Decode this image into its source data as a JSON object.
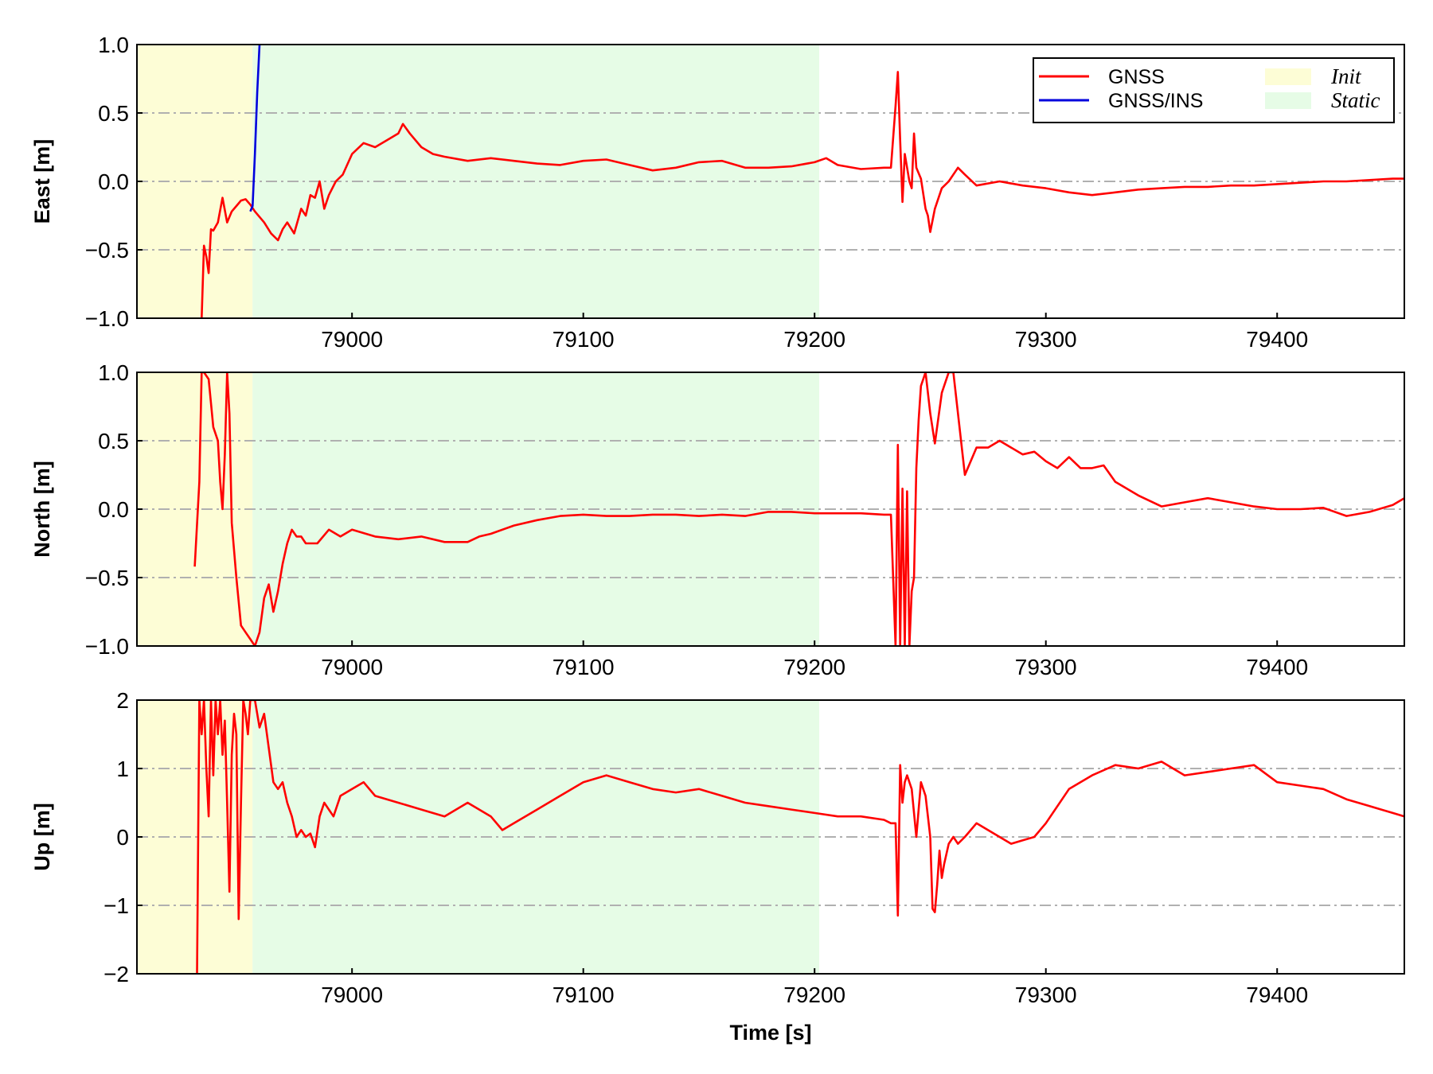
{
  "chart_data": {
    "type": "line",
    "xlabel": "Time [s]",
    "xlim": [
      78907,
      79455
    ],
    "x_ticks": [
      "79000",
      "79100",
      "79200",
      "79300",
      "79400"
    ],
    "x_tick_values": [
      79000,
      79100,
      79200,
      79300,
      79400
    ],
    "grid": "horizontal dash-dot at major y ticks",
    "legend": {
      "placement": "top-right of first panel",
      "entries": [
        {
          "label": "GNSS",
          "kind": "line",
          "color": "#ff0000"
        },
        {
          "label": "GNSS/INS",
          "kind": "line",
          "color": "#0000dd"
        },
        {
          "label": "Init",
          "kind": "patch",
          "color": "#fdfdd6"
        },
        {
          "label": "Static",
          "kind": "patch",
          "color": "#e6fce6"
        }
      ]
    },
    "shaded_regions": [
      {
        "label": "Init",
        "x": [
          78907,
          78957
        ],
        "color": "#fdfdd6"
      },
      {
        "label": "Static",
        "x": [
          78957,
          79202
        ],
        "color": "#e6fce6"
      }
    ],
    "panels": [
      {
        "ylabel": "East [m]",
        "ylim": [
          -1.0,
          1.0
        ],
        "y_ticks": [
          "−1.0",
          "−0.5",
          "0.0",
          "0.5",
          "1.0"
        ],
        "y_tick_values": [
          -1.0,
          -0.5,
          0.0,
          0.5,
          1.0
        ],
        "series": [
          {
            "name": "GNSS",
            "color": "#ff0000",
            "x": [
              78935,
              78936,
              78937,
              78938,
              78939,
              78940,
              78942,
              78944,
              78946,
              78948,
              78950,
              78952,
              78954,
              78956,
              78958,
              78960,
              78962,
              78965,
              78968,
              78970,
              78972,
              78975,
              78978,
              78980,
              78982,
              78984,
              78986,
              78988,
              78990,
              78993,
              78996,
              79000,
              79005,
              79010,
              79015,
              79020,
              79022,
              79025,
              79030,
              79035,
              79040,
              79050,
              79060,
              79070,
              79080,
              79090,
              79100,
              79110,
              79120,
              79130,
              79140,
              79150,
              79160,
              79170,
              79180,
              79190,
              79200,
              79205,
              79210,
              79220,
              79230,
              79233,
              79235,
              79236,
              79237,
              79238,
              79239,
              79240,
              79241,
              79242,
              79243,
              79244,
              79246,
              79248,
              79249,
              79250,
              79252,
              79255,
              79258,
              79262,
              79265,
              79270,
              79280,
              79290,
              79300,
              79310,
              79320,
              79330,
              79340,
              79350,
              79360,
              79370,
              79380,
              79390,
              79400,
              79410,
              79420,
              79430,
              79440,
              79450,
              79455
            ],
            "y": [
              -1.0,
              -0.47,
              -0.55,
              -0.67,
              -0.35,
              -0.36,
              -0.3,
              -0.12,
              -0.3,
              -0.22,
              -0.18,
              -0.14,
              -0.13,
              -0.17,
              -0.22,
              -0.26,
              -0.3,
              -0.38,
              -0.43,
              -0.35,
              -0.3,
              -0.38,
              -0.2,
              -0.25,
              -0.1,
              -0.12,
              0.0,
              -0.2,
              -0.1,
              0.0,
              0.05,
              0.2,
              0.28,
              0.25,
              0.3,
              0.35,
              0.42,
              0.35,
              0.25,
              0.2,
              0.18,
              0.15,
              0.17,
              0.15,
              0.13,
              0.12,
              0.15,
              0.16,
              0.12,
              0.08,
              0.1,
              0.14,
              0.15,
              0.1,
              0.1,
              0.11,
              0.14,
              0.17,
              0.12,
              0.09,
              0.1,
              0.1,
              0.55,
              0.8,
              0.3,
              -0.15,
              0.2,
              0.1,
              0.0,
              -0.05,
              0.35,
              0.1,
              0.02,
              -0.2,
              -0.25,
              -0.37,
              -0.2,
              -0.05,
              0.0,
              0.1,
              0.05,
              -0.03,
              0.0,
              -0.03,
              -0.05,
              -0.08,
              -0.1,
              -0.08,
              -0.06,
              -0.05,
              -0.04,
              -0.04,
              -0.03,
              -0.03,
              -0.02,
              -0.01,
              0.0,
              0.0,
              0.01,
              0.02,
              0.02
            ]
          },
          {
            "name": "GNSS/INS",
            "color": "#0000dd",
            "x": [
              78956,
              78957,
              78958,
              78959,
              78960
            ],
            "y": [
              -0.22,
              -0.18,
              0.2,
              0.65,
              1.0
            ]
          }
        ]
      },
      {
        "ylabel": "North [m]",
        "ylim": [
          -1.0,
          1.0
        ],
        "y_ticks": [
          "−1.0",
          "−0.5",
          "0.0",
          "0.5",
          "1.0"
        ],
        "y_tick_values": [
          -1.0,
          -0.5,
          0.0,
          0.5,
          1.0
        ],
        "series": [
          {
            "name": "GNSS",
            "color": "#ff0000",
            "x": [
              78932,
              78934,
              78935,
              78936,
              78938,
              78940,
              78942,
              78943,
              78944,
              78945,
              78946,
              78947,
              78948,
              78950,
              78952,
              78954,
              78956,
              78958,
              78960,
              78962,
              78964,
              78966,
              78968,
              78970,
              78972,
              78974,
              78976,
              78978,
              78980,
              78985,
              78990,
              78995,
              79000,
              79010,
              79020,
              79030,
              79040,
              79050,
              79055,
              79060,
              79070,
              79080,
              79090,
              79100,
              79110,
              79120,
              79130,
              79140,
              79150,
              79160,
              79170,
              79180,
              79190,
              79200,
              79210,
              79220,
              79230,
              79233,
              79235,
              79236,
              79237,
              79238,
              79239,
              79240,
              79241,
              79242,
              79243,
              79244,
              79245,
              79246,
              79248,
              79250,
              79252,
              79255,
              79258,
              79260,
              79262,
              79265,
              79270,
              79275,
              79280,
              79285,
              79290,
              79295,
              79300,
              79305,
              79310,
              79315,
              79320,
              79325,
              79330,
              79340,
              79350,
              79360,
              79370,
              79380,
              79390,
              79400,
              79410,
              79420,
              79430,
              79440,
              79450,
              79455
            ],
            "y": [
              -0.42,
              0.2,
              1.0,
              1.0,
              0.95,
              0.6,
              0.5,
              0.2,
              0.0,
              0.4,
              1.0,
              0.7,
              -0.1,
              -0.5,
              -0.85,
              -0.9,
              -0.95,
              -1.0,
              -0.9,
              -0.65,
              -0.55,
              -0.75,
              -0.6,
              -0.4,
              -0.25,
              -0.15,
              -0.2,
              -0.2,
              -0.25,
              -0.25,
              -0.15,
              -0.2,
              -0.15,
              -0.2,
              -0.22,
              -0.2,
              -0.24,
              -0.24,
              -0.2,
              -0.18,
              -0.12,
              -0.08,
              -0.05,
              -0.04,
              -0.05,
              -0.05,
              -0.04,
              -0.04,
              -0.05,
              -0.04,
              -0.05,
              -0.02,
              -0.02,
              -0.03,
              -0.03,
              -0.03,
              -0.04,
              -0.04,
              -1.0,
              0.47,
              -1.0,
              0.15,
              -1.0,
              0.13,
              -1.0,
              -0.6,
              -0.5,
              0.3,
              0.65,
              0.9,
              1.0,
              0.7,
              0.48,
              0.85,
              1.0,
              1.0,
              0.7,
              0.25,
              0.45,
              0.45,
              0.5,
              0.45,
              0.4,
              0.42,
              0.35,
              0.3,
              0.38,
              0.3,
              0.3,
              0.32,
              0.2,
              0.1,
              0.02,
              0.05,
              0.08,
              0.05,
              0.02,
              0.0,
              0.0,
              0.01,
              -0.05,
              -0.02,
              0.03,
              0.08
            ]
          }
        ]
      },
      {
        "ylabel": "Up [m]",
        "ylim": [
          -2,
          2
        ],
        "y_ticks": [
          "−2",
          "−1",
          "0",
          "1",
          "2"
        ],
        "y_tick_values": [
          -2,
          -1,
          0,
          1,
          2
        ],
        "series": [
          {
            "name": "GNSS",
            "color": "#ff0000",
            "x": [
              78933,
              78934,
              78935,
              78936,
              78937,
              78938,
              78939,
              78940,
              78941,
              78942,
              78943,
              78944,
              78945,
              78946,
              78947,
              78948,
              78949,
              78950,
              78951,
              78952,
              78953,
              78954,
              78955,
              78956,
              78958,
              78960,
              78962,
              78964,
              78966,
              78968,
              78970,
              78972,
              78974,
              78976,
              78978,
              78980,
              78982,
              78984,
              78986,
              78988,
              78990,
              78992,
              78995,
              79000,
              79005,
              79010,
              79020,
              79030,
              79040,
              79050,
              79060,
              79065,
              79070,
              79080,
              79090,
              79100,
              79110,
              79120,
              79130,
              79140,
              79150,
              79160,
              79170,
              79180,
              79190,
              79200,
              79210,
              79220,
              79230,
              79233,
              79235,
              79236,
              79237,
              79238,
              79239,
              79240,
              79242,
              79244,
              79246,
              79248,
              79250,
              79251,
              79252,
              79253,
              79254,
              79255,
              79256,
              79258,
              79260,
              79262,
              79265,
              79270,
              79275,
              79280,
              79285,
              79290,
              79295,
              79300,
              79310,
              79320,
              79330,
              79340,
              79350,
              79360,
              79370,
              79380,
              79390,
              79400,
              79410,
              79420,
              79430,
              79440,
              79450,
              79455
            ],
            "y": [
              -2.0,
              2.0,
              1.5,
              2.0,
              1.0,
              0.3,
              2.0,
              0.9,
              2.0,
              1.5,
              2.0,
              1.2,
              1.7,
              0.5,
              -0.8,
              1.2,
              1.8,
              1.5,
              -1.2,
              0.5,
              2.0,
              1.8,
              1.5,
              2.0,
              2.0,
              1.6,
              1.8,
              1.3,
              0.8,
              0.7,
              0.8,
              0.5,
              0.3,
              0.0,
              0.1,
              0.0,
              0.05,
              -0.15,
              0.3,
              0.5,
              0.4,
              0.3,
              0.6,
              0.7,
              0.8,
              0.6,
              0.5,
              0.4,
              0.3,
              0.5,
              0.3,
              0.1,
              0.2,
              0.4,
              0.6,
              0.8,
              0.9,
              0.8,
              0.7,
              0.65,
              0.7,
              0.6,
              0.5,
              0.45,
              0.4,
              0.35,
              0.3,
              0.3,
              0.25,
              0.2,
              0.2,
              -1.15,
              1.05,
              0.5,
              0.8,
              0.9,
              0.7,
              0.0,
              0.8,
              0.6,
              0.0,
              -1.05,
              -1.1,
              -0.7,
              -0.2,
              -0.6,
              -0.4,
              -0.1,
              0.0,
              -0.1,
              0.0,
              0.2,
              0.1,
              0.0,
              -0.1,
              -0.05,
              0.0,
              0.2,
              0.7,
              0.9,
              1.05,
              1.0,
              1.1,
              0.9,
              0.95,
              1.0,
              1.05,
              0.8,
              0.75,
              0.7,
              0.55,
              0.45,
              0.35,
              0.3
            ]
          }
        ]
      }
    ]
  }
}
